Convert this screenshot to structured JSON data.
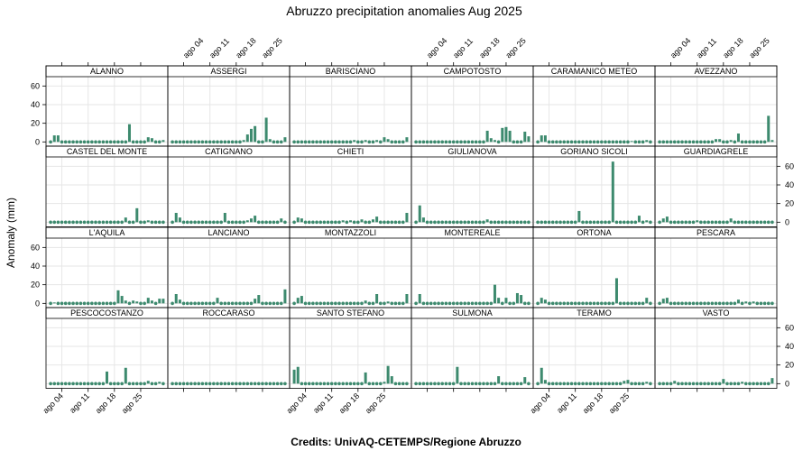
{
  "title": "Abruzzo precipitation anomalies Aug 2025",
  "footer": "Credits: UnivAQ-CETEMPS/Regione Abruzzo",
  "ylabel": "Anomaly (mm)",
  "colors": {
    "bar": "#3d8a6e",
    "dot": "#3d8a6e",
    "grid": "#e6e6e6",
    "strip": "#ffffff"
  },
  "chart_data": {
    "type": "bar",
    "layout": {
      "columns": 6,
      "rows": 4
    },
    "x": {
      "days": 31,
      "start_label_day": 1,
      "tick_days": [
        4,
        11,
        18,
        25
      ],
      "tick_labels": [
        "ago 04",
        "ago 11",
        "ago 18",
        "ago 25"
      ]
    },
    "ylim": [
      -5,
      70
    ],
    "yticks": [
      0,
      20,
      40,
      60
    ],
    "grid": true,
    "panels": [
      {
        "name": "ALANNO",
        "values": {
          "2": 7,
          "3": 7,
          "22": 19,
          "27": 5,
          "28": 4,
          "31": 2
        }
      },
      {
        "name": "ASSERGI",
        "values": {
          "20": 2,
          "21": 8,
          "22": 14,
          "23": 17,
          "26": 26,
          "27": 3,
          "31": 5
        }
      },
      {
        "name": "BARISCIANO",
        "values": {
          "17": 2,
          "20": 2,
          "23": 2,
          "25": 5,
          "26": 3,
          "31": 5
        }
      },
      {
        "name": "CAMPOTOSTO",
        "values": {
          "20": 12,
          "21": 4,
          "22": 2,
          "24": 15,
          "25": 16,
          "26": 12,
          "30": 11,
          "31": 6
        }
      },
      {
        "name": "CARAMANICO METEO",
        "values": {
          "2": 7,
          "3": 7,
          "26": 1,
          "30": 2
        }
      },
      {
        "name": "AVEZZANO",
        "values": {
          "16": 3,
          "17": 3,
          "20": 2,
          "22": 9,
          "30": 28,
          "31": 2
        }
      },
      {
        "name": "CASTEL DEL MONTE",
        "values": {
          "21": 5,
          "24": 15,
          "27": 2
        }
      },
      {
        "name": "CATIGNANO",
        "values": {
          "2": 10,
          "3": 5,
          "15": 10,
          "21": 2,
          "22": 4,
          "23": 7,
          "30": 4
        }
      },
      {
        "name": "CHIETI",
        "values": {
          "2": 5,
          "3": 4,
          "14": 2,
          "16": 2,
          "19": 3,
          "22": 3,
          "23": 6,
          "31": 10
        }
      },
      {
        "name": "GIULIANOVA",
        "values": {
          "2": 18,
          "3": 5,
          "20": 3
        }
      },
      {
        "name": "GORIANO SICOLI",
        "values": {
          "12": 12,
          "21": 65,
          "28": 7,
          "30": 2
        }
      },
      {
        "name": "GUARDIAGRELE",
        "values": {
          "2": 4,
          "3": 6,
          "11": 2,
          "20": 4
        }
      },
      {
        "name": "L'AQUILA",
        "values": {
          "2": 1,
          "19": 14,
          "20": 8,
          "21": 3,
          "23": 3,
          "24": 2,
          "27": 6,
          "28": 3,
          "30": 5,
          "31": 5
        }
      },
      {
        "name": "LANCIANO",
        "values": {
          "2": 10,
          "3": 4,
          "13": 6,
          "23": 5,
          "24": 9,
          "31": 15
        }
      },
      {
        "name": "MONTAZZOLI",
        "values": {
          "2": 6,
          "3": 8,
          "20": 3,
          "23": 10,
          "26": 2,
          "31": 10
        }
      },
      {
        "name": "MONTEREALE",
        "values": {
          "2": 10,
          "22": 20,
          "23": 6,
          "25": 6,
          "28": 11,
          "29": 9
        }
      },
      {
        "name": "ORTONA",
        "values": {
          "2": 6,
          "3": 4,
          "22": 27,
          "30": 6
        }
      },
      {
        "name": "PESCARA",
        "values": {
          "2": 5,
          "3": 6,
          "22": 4,
          "24": 2,
          "26": 2
        }
      },
      {
        "name": "PESCOCOSTANZO",
        "values": {
          "16": 13,
          "21": 17,
          "27": 3,
          "30": 2
        }
      },
      {
        "name": "ROCCARASO",
        "values": {}
      },
      {
        "name": "SANTO STEFANO",
        "values": {
          "1": 15,
          "2": 18,
          "20": 12,
          "25": 2,
          "26": 19,
          "27": 8
        }
      },
      {
        "name": "SULMONA",
        "values": {
          "12": 18,
          "23": 8,
          "30": 7
        }
      },
      {
        "name": "TERAMO",
        "values": {
          "2": 17,
          "3": 4,
          "24": 3,
          "25": 4,
          "30": 2
        }
      },
      {
        "name": "VASTO",
        "values": {
          "5": 3,
          "18": 5,
          "23": 2,
          "31": 6
        }
      }
    ]
  }
}
